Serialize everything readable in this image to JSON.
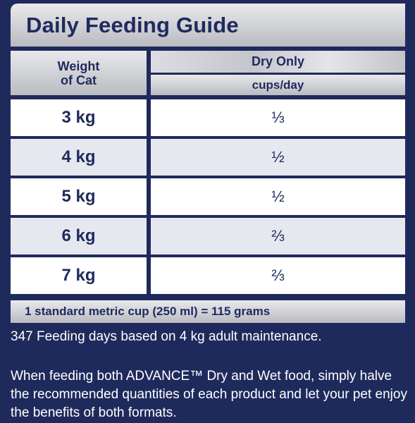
{
  "title": "Daily Feeding Guide",
  "table": {
    "weight_header_line1": "Weight",
    "weight_header_line2": "of Cat",
    "food_header": "Dry Only",
    "unit_header": "cups/day",
    "rows": [
      {
        "weight": "3 kg",
        "amount": "⅓"
      },
      {
        "weight": "4 kg",
        "amount": "½"
      },
      {
        "weight": "5 kg",
        "amount": "½"
      },
      {
        "weight": "6 kg",
        "amount": "⅔"
      },
      {
        "weight": "7 kg",
        "amount": "⅔"
      }
    ]
  },
  "cup_note": "1 standard metric cup (250 ml) = 115 grams",
  "feeding_days": "347 Feeding days based on 4 kg adult maintenance.",
  "combined_feeding": "When feeding both ADVANCE™ Dry and Wet food, simply halve the recommended quantities of each product and let your pet enjoy the benefits of both formats.",
  "colors": {
    "navy": "#1f2a5c",
    "silver": "#cfd0d5",
    "row_alt": "#e6e8ef",
    "white": "#ffffff"
  }
}
